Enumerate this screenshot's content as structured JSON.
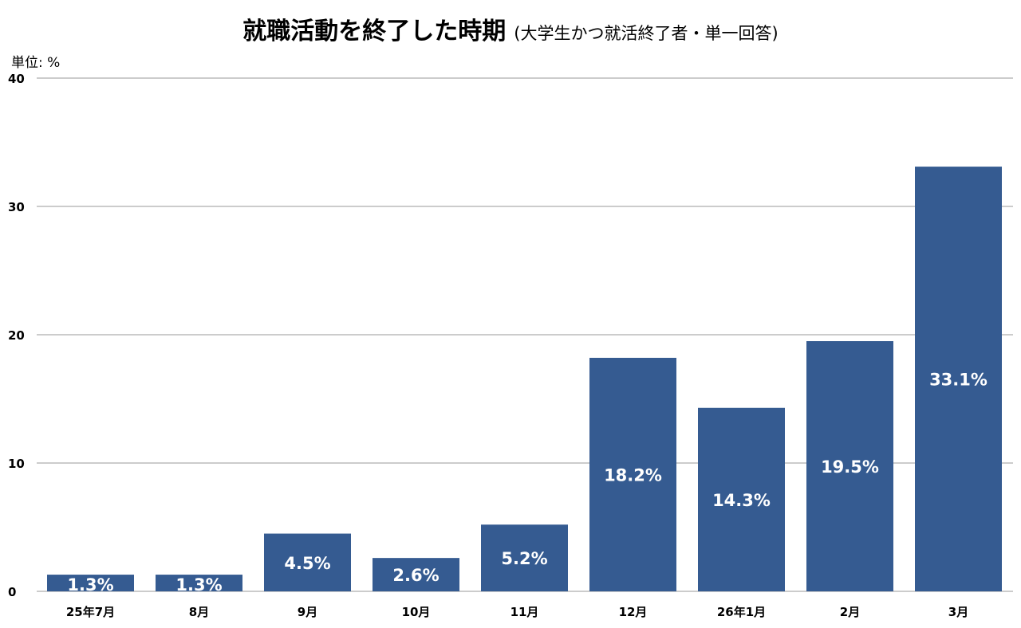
{
  "chart_data": {
    "type": "bar",
    "title": "就職活動を終了した時期",
    "subtitle": "(大学生かつ就活終了者・単一回答)",
    "unit_label": "単位: %",
    "categories": [
      "25年7月",
      "8月",
      "9月",
      "10月",
      "11月",
      "12月",
      "26年1月",
      "2月",
      "3月"
    ],
    "values": [
      1.3,
      1.3,
      4.5,
      2.6,
      5.2,
      18.2,
      14.3,
      19.5,
      33.1
    ],
    "data_labels": [
      "1.3%",
      "1.3%",
      "4.5%",
      "2.6%",
      "5.2%",
      "18.2%",
      "14.3%",
      "19.5%",
      "33.1%"
    ],
    "ylim": [
      0,
      40
    ],
    "yticks": [
      0,
      10,
      20,
      30,
      40
    ],
    "ytick_labels": [
      "0",
      "10",
      "20",
      "30",
      "40"
    ],
    "xlabel": "",
    "ylabel": "",
    "grid": true,
    "legend": "none",
    "colors": {
      "bar": "#355b91",
      "grid": "#9a9a9a",
      "label": "#ffffff"
    }
  }
}
